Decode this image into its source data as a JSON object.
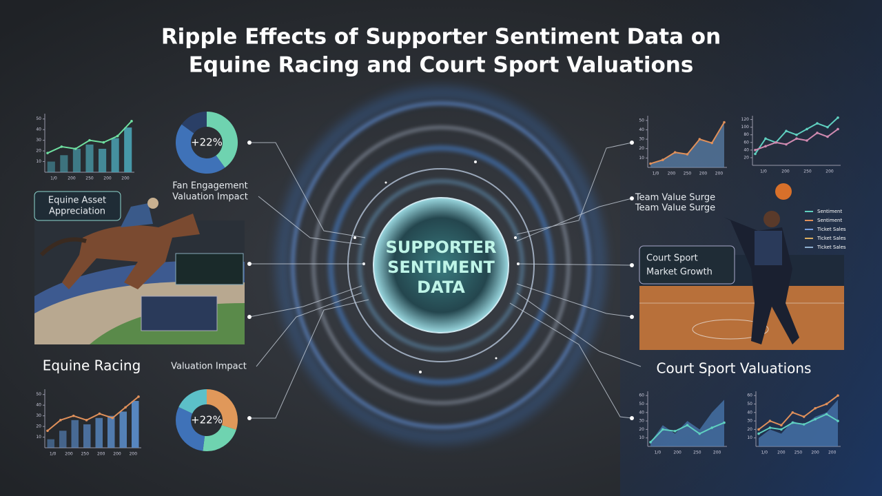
{
  "title": {
    "line1": "Ripple Effects of Supporter Sentiment Data on",
    "line2": "Equine Racing and Court Sport Valuations"
  },
  "center": {
    "line1": "SUPPORTER",
    "line2": "SENTIMENT",
    "line3": "DATA"
  },
  "left": {
    "asset_box": {
      "line1": "Equine Asset",
      "line2": "Appreciation"
    },
    "fan_engagement": "Fan Engagement",
    "valuation_impact_top": "Valuation Impact",
    "section_title": "Equine Racing",
    "valuation_impact_bottom": "Valuation Impact"
  },
  "right": {
    "team_value_surge": [
      "Team Value Surge",
      "Team Value Surge"
    ],
    "market_box": {
      "line1": "Court Sport",
      "line2": "Market Growth"
    },
    "section_title": "Court Sport Valuations",
    "legend": [
      {
        "name": "Sentiment",
        "color": "#5fd0c0"
      },
      {
        "name": "Sentiment",
        "color": "#e0905a"
      },
      {
        "name": "Ticket Sales",
        "color": "#7aa0e0"
      },
      {
        "name": "Ticket Sales",
        "color": "#e0b060"
      },
      {
        "name": "Ticket Sales",
        "color": "#8fb0d0"
      }
    ]
  },
  "donuts": [
    {
      "label": "+22%",
      "segments": [
        {
          "value": 40,
          "color": "#6fd3b0"
        },
        {
          "value": 45,
          "color": "#3f72b8"
        },
        {
          "value": 15,
          "color": "#2a3f66"
        }
      ]
    },
    {
      "label": "+22%",
      "segments": [
        {
          "value": 30,
          "color": "#e0985a"
        },
        {
          "value": 22,
          "color": "#6fd3b0"
        },
        {
          "value": 30,
          "color": "#3f72b8"
        },
        {
          "value": 18,
          "color": "#5cc0c8"
        }
      ]
    }
  ],
  "minicharts": [
    {
      "ylim": [
        0,
        55
      ],
      "yticks": [
        10,
        20,
        30,
        40,
        50
      ],
      "xlabels": [
        "1/0",
        "200",
        "250",
        "200",
        "200"
      ],
      "series": [
        {
          "kind": "bar",
          "color": "#4aa0b0",
          "values": [
            10,
            16,
            22,
            26,
            22,
            32,
            42
          ]
        },
        {
          "kind": "line",
          "color": "#6fe0a0",
          "values": [
            18,
            24,
            22,
            30,
            28,
            34,
            48
          ]
        }
      ]
    },
    {
      "ylim": [
        0,
        55
      ],
      "yticks": [
        10,
        20,
        30,
        40,
        50
      ],
      "xlabels": [
        "1/0",
        "200",
        "250",
        "200",
        "200",
        "200"
      ],
      "series": [
        {
          "kind": "bar",
          "color": "#5a8cc8",
          "values": [
            8,
            16,
            26,
            22,
            28,
            30,
            34,
            44
          ]
        },
        {
          "kind": "line",
          "color": "#e0905a",
          "values": [
            16,
            26,
            30,
            26,
            32,
            28,
            38,
            48
          ]
        }
      ]
    },
    {
      "ylim": [
        0,
        55
      ],
      "yticks": [
        10,
        20,
        30,
        40,
        50
      ],
      "xlabels": [
        "1/0",
        "200",
        "250",
        "200",
        "200"
      ],
      "series": [
        {
          "kind": "area",
          "color": "#5a7fa8",
          "values": [
            4,
            8,
            16,
            14,
            30,
            26,
            48
          ]
        },
        {
          "kind": "line",
          "color": "#e0905a",
          "values": [
            4,
            8,
            16,
            14,
            30,
            26,
            48
          ]
        }
      ]
    },
    {
      "ylim": [
        0,
        130
      ],
      "yticks": [
        20,
        40,
        60,
        80,
        100,
        120
      ],
      "xlabels": [
        "1/0",
        "200",
        "250",
        "200"
      ],
      "series": [
        {
          "kind": "line",
          "color": "#5fd0c0",
          "values": [
            30,
            70,
            60,
            90,
            80,
            95,
            110,
            100,
            125
          ]
        },
        {
          "kind": "line",
          "color": "#d08ab0",
          "values": [
            40,
            50,
            60,
            55,
            70,
            65,
            85,
            75,
            95
          ]
        }
      ]
    },
    {
      "ylim": [
        0,
        65
      ],
      "yticks": [
        10,
        20,
        30,
        40,
        50,
        60
      ],
      "xlabels": [
        "1/0",
        "200",
        "250",
        "200"
      ],
      "series": [
        {
          "kind": "area",
          "color": "#4a78b0",
          "values": [
            5,
            25,
            15,
            30,
            20,
            40,
            55
          ]
        },
        {
          "kind": "line",
          "color": "#5fd0c0",
          "values": [
            5,
            20,
            18,
            25,
            15,
            22,
            28
          ]
        }
      ]
    },
    {
      "ylim": [
        0,
        65
      ],
      "yticks": [
        10,
        20,
        30,
        40,
        50,
        60
      ],
      "xlabels": [
        "1/0",
        "200",
        "250",
        "200",
        "200"
      ],
      "series": [
        {
          "kind": "area",
          "color": "#4a78b0",
          "values": [
            10,
            20,
            15,
            30,
            25,
            35,
            40,
            55
          ]
        },
        {
          "kind": "line",
          "color": "#e0905a",
          "values": [
            20,
            30,
            25,
            40,
            35,
            45,
            50,
            60
          ]
        },
        {
          "kind": "line",
          "color": "#5fd0c0",
          "values": [
            15,
            22,
            20,
            28,
            26,
            32,
            38,
            30
          ]
        }
      ]
    }
  ]
}
